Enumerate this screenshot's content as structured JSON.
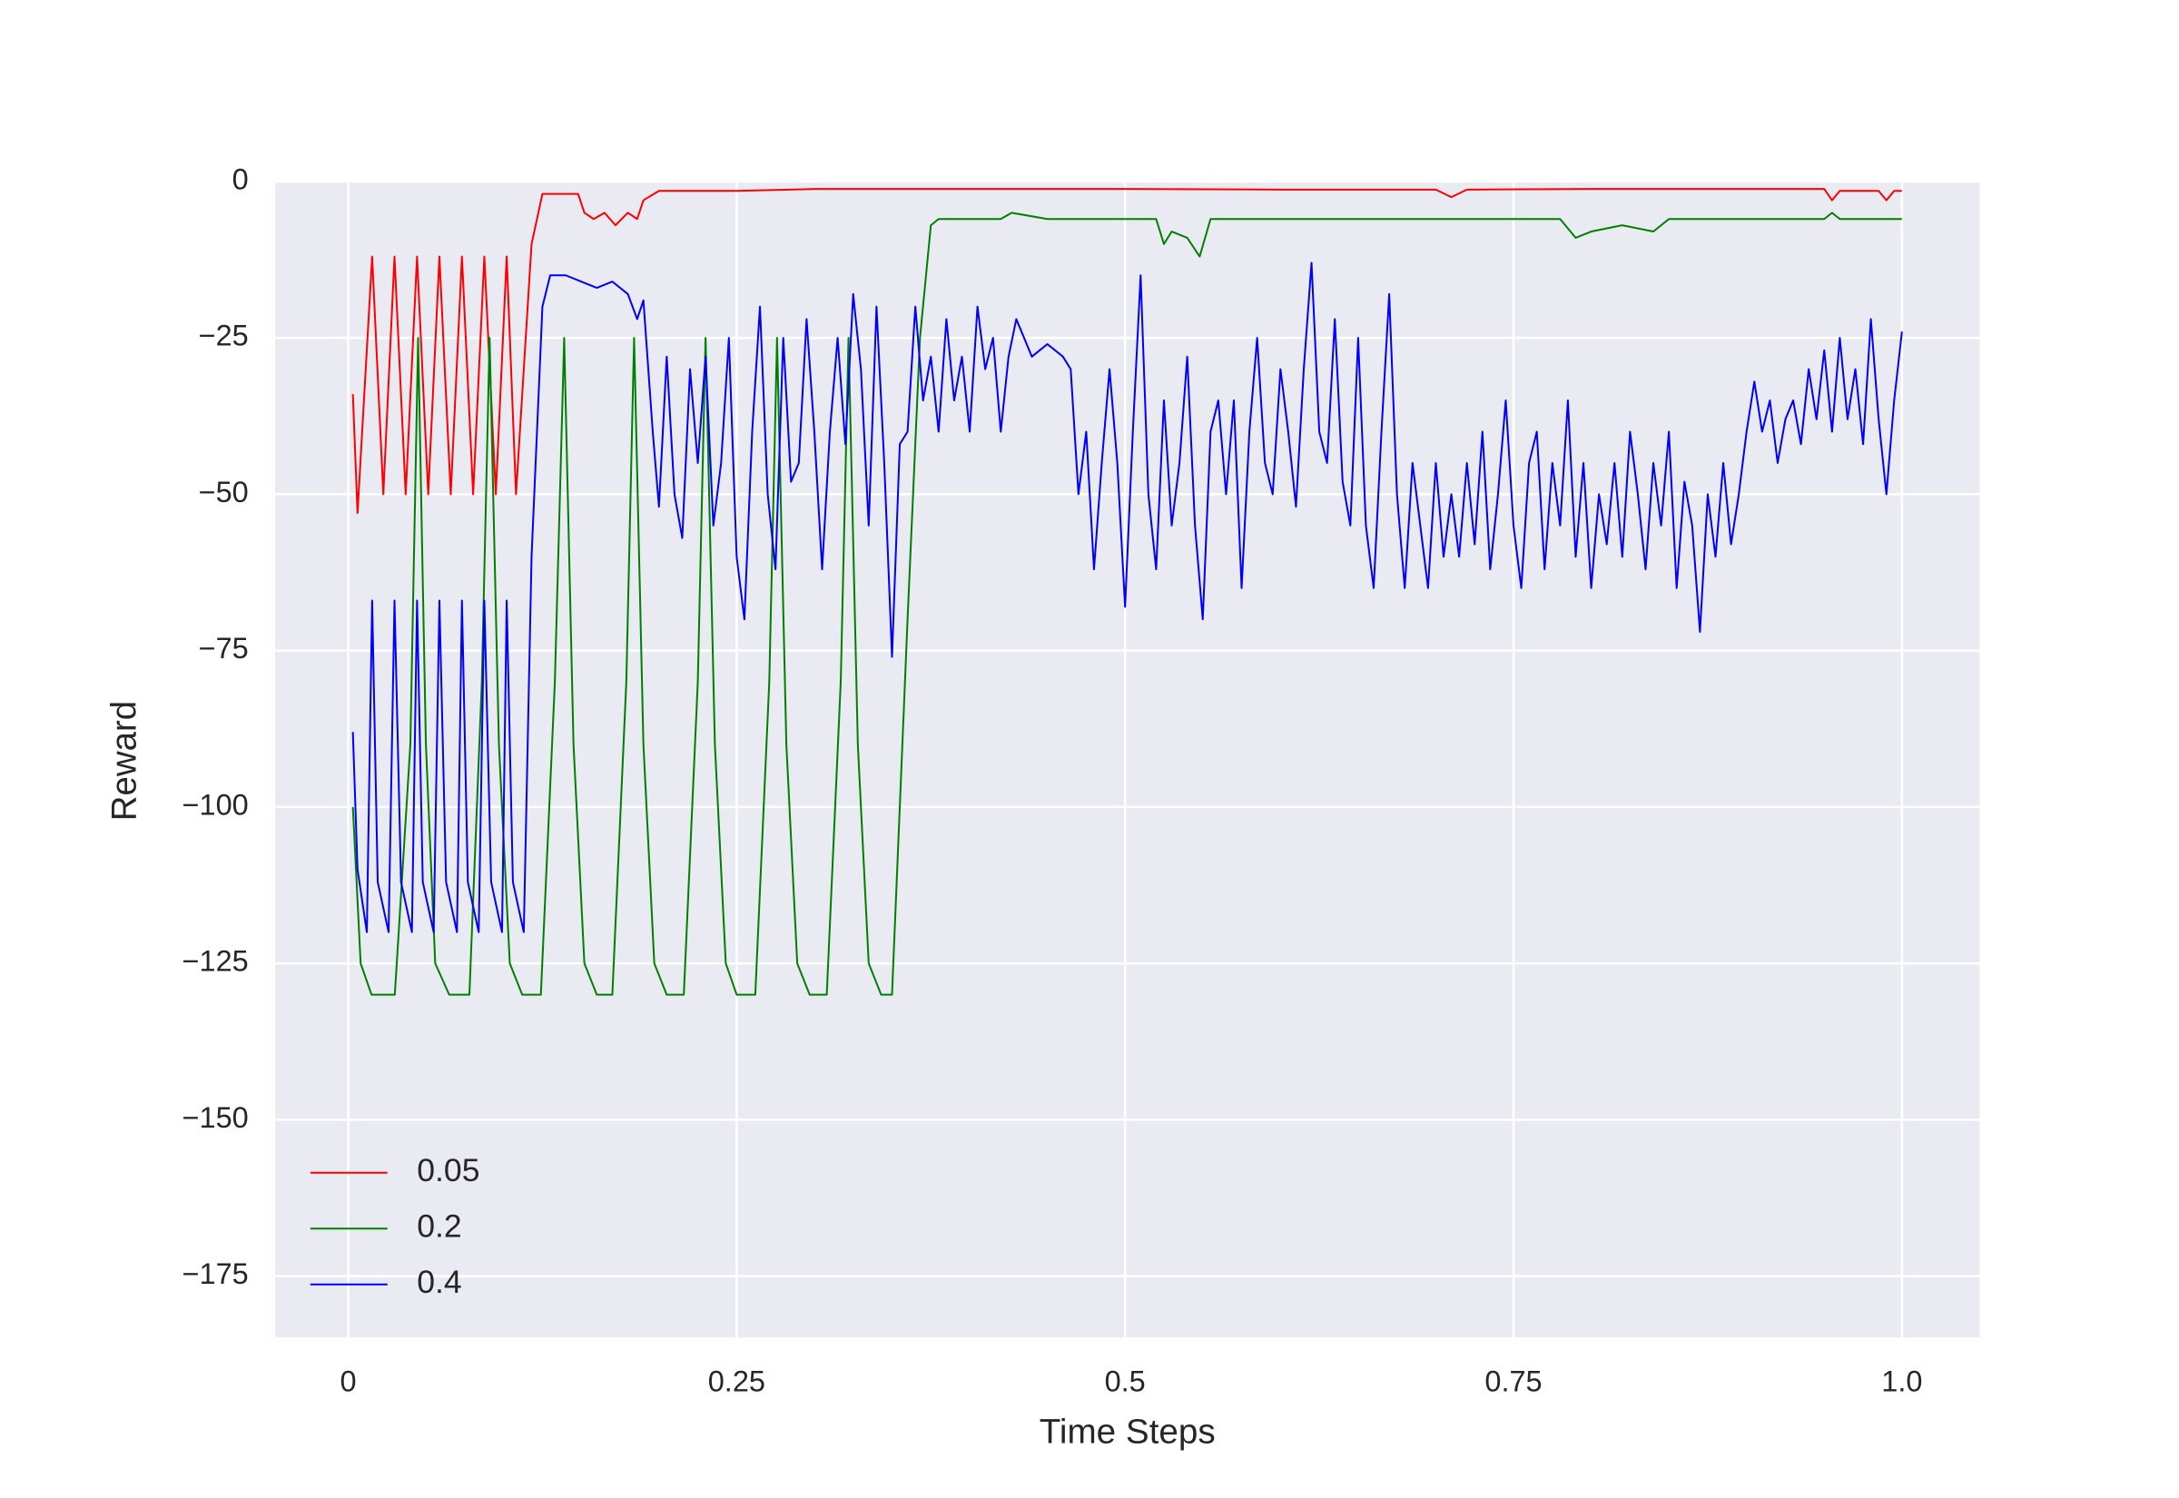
{
  "chart_data": {
    "type": "line",
    "x_label": "Time Steps",
    "y_label": "Reward",
    "xlim": [
      -0.047,
      1.05
    ],
    "ylim": [
      -184.8,
      0
    ],
    "xticks": [
      0,
      0.25,
      0.5,
      0.75,
      {
        "value": 1,
        "label": "1.0"
      }
    ],
    "yticks": [
      0,
      {
        "value": -25,
        "label": "−25"
      },
      {
        "value": -50,
        "label": "−50"
      },
      {
        "value": -75,
        "label": "−75"
      },
      {
        "value": -100,
        "label": "−100"
      },
      {
        "value": -125,
        "label": "−125"
      },
      {
        "value": -150,
        "label": "−150"
      },
      {
        "value": -175,
        "label": "−175"
      }
    ],
    "grid": true,
    "legend": "lower left",
    "series": [
      {
        "name": "0.05",
        "color": "#ff0000",
        "x": [
          0.003,
          0.006,
          0.0154,
          0.0226,
          0.0298,
          0.037,
          0.0443,
          0.0515,
          0.0587,
          0.066,
          0.0732,
          0.0804,
          0.0876,
          0.095,
          0.102,
          0.108,
          0.118,
          0.125,
          0.14,
          0.148,
          0.152,
          0.158,
          0.165,
          0.172,
          0.18,
          0.186,
          0.19,
          0.2,
          0.25,
          0.3,
          0.4,
          0.5,
          0.6,
          0.7,
          0.71,
          0.72,
          0.8,
          0.9,
          0.95,
          0.955,
          0.96,
          0.985,
          0.99,
          0.995,
          1.0
        ],
        "values": [
          -34,
          -53,
          -12,
          -50,
          -12,
          -50,
          -12,
          -50,
          -12,
          -50,
          -12,
          -50,
          -12,
          -50,
          -12,
          -50,
          -10,
          -2,
          -2,
          -2,
          -5,
          -6,
          -5,
          -7,
          -5,
          -6,
          -3,
          -1.5,
          -1.5,
          -1.2,
          -1.2,
          -1.2,
          -1.3,
          -1.3,
          -2.5,
          -1.3,
          -1.2,
          -1.2,
          -1.2,
          -3,
          -1.5,
          -1.5,
          -3,
          -1.5,
          -1.5
        ]
      },
      {
        "name": "0.2",
        "color": "#008000",
        "x": [
          0.003,
          0.008,
          0.015,
          0.03,
          0.04,
          0.045,
          0.05,
          0.056,
          0.065,
          0.078,
          0.086,
          0.091,
          0.097,
          0.104,
          0.112,
          0.124,
          0.133,
          0.139,
          0.145,
          0.152,
          0.16,
          0.17,
          0.179,
          0.184,
          0.19,
          0.197,
          0.205,
          0.216,
          0.225,
          0.23,
          0.236,
          0.243,
          0.25,
          0.262,
          0.271,
          0.276,
          0.282,
          0.289,
          0.297,
          0.308,
          0.317,
          0.322,
          0.328,
          0.335,
          0.343,
          0.35,
          0.36,
          0.368,
          0.375,
          0.38,
          0.42,
          0.427,
          0.45,
          0.5,
          0.52,
          0.525,
          0.53,
          0.54,
          0.548,
          0.555,
          0.6,
          0.7,
          0.78,
          0.79,
          0.8,
          0.82,
          0.84,
          0.85,
          0.9,
          0.95,
          0.955,
          0.96,
          1.0
        ],
        "values": [
          -100,
          -125,
          -130,
          -130,
          -90,
          -25,
          -90,
          -125,
          -130,
          -130,
          -80,
          -25,
          -90,
          -125,
          -130,
          -130,
          -80,
          -25,
          -90,
          -125,
          -130,
          -130,
          -80,
          -25,
          -90,
          -125,
          -130,
          -130,
          -80,
          -25,
          -90,
          -125,
          -130,
          -130,
          -80,
          -25,
          -90,
          -125,
          -130,
          -130,
          -80,
          -25,
          -90,
          -125,
          -130,
          -130,
          -70,
          -25,
          -7,
          -6,
          -6,
          -5,
          -6,
          -6,
          -6,
          -10,
          -8,
          -9,
          -12,
          -6,
          -6,
          -6,
          -6,
          -9,
          -8,
          -7,
          -8,
          -6,
          -6,
          -6,
          -5,
          -6,
          -6
        ]
      },
      {
        "name": "0.4",
        "color": "#0000ff",
        "x": [
          0.003,
          0.006,
          0.012,
          0.0154,
          0.019,
          0.026,
          0.0298,
          0.034,
          0.041,
          0.0443,
          0.048,
          0.055,
          0.0587,
          0.063,
          0.07,
          0.0732,
          0.077,
          0.084,
          0.0876,
          0.092,
          0.099,
          0.102,
          0.106,
          0.113,
          0.118,
          0.125,
          0.13,
          0.14,
          0.15,
          0.16,
          0.17,
          0.18,
          0.186,
          0.19,
          0.196,
          0.2,
          0.205,
          0.21,
          0.215,
          0.22,
          0.225,
          0.23,
          0.235,
          0.24,
          0.245,
          0.25,
          0.255,
          0.26,
          0.265,
          0.27,
          0.275,
          0.28,
          0.285,
          0.29,
          0.295,
          0.3,
          0.305,
          0.31,
          0.315,
          0.32,
          0.325,
          0.33,
          0.335,
          0.34,
          0.345,
          0.35,
          0.355,
          0.36,
          0.365,
          0.37,
          0.375,
          0.38,
          0.385,
          0.39,
          0.395,
          0.4,
          0.405,
          0.41,
          0.415,
          0.42,
          0.425,
          0.43,
          0.44,
          0.45,
          0.46,
          0.465,
          0.47,
          0.475,
          0.48,
          0.485,
          0.49,
          0.495,
          0.5,
          0.505,
          0.51,
          0.515,
          0.52,
          0.525,
          0.53,
          0.535,
          0.54,
          0.545,
          0.55,
          0.555,
          0.56,
          0.565,
          0.57,
          0.575,
          0.58,
          0.585,
          0.59,
          0.595,
          0.6,
          0.605,
          0.61,
          0.615,
          0.62,
          0.625,
          0.63,
          0.635,
          0.64,
          0.645,
          0.65,
          0.655,
          0.66,
          0.665,
          0.67,
          0.675,
          0.68,
          0.685,
          0.69,
          0.695,
          0.7,
          0.705,
          0.71,
          0.715,
          0.72,
          0.725,
          0.73,
          0.735,
          0.74,
          0.745,
          0.75,
          0.755,
          0.76,
          0.765,
          0.77,
          0.775,
          0.78,
          0.785,
          0.79,
          0.795,
          0.8,
          0.805,
          0.81,
          0.815,
          0.82,
          0.825,
          0.83,
          0.835,
          0.84,
          0.845,
          0.85,
          0.855,
          0.86,
          0.865,
          0.87,
          0.875,
          0.88,
          0.885,
          0.89,
          0.895,
          0.9,
          0.905,
          0.91,
          0.915,
          0.92,
          0.925,
          0.93,
          0.935,
          0.94,
          0.945,
          0.95,
          0.955,
          0.96,
          0.965,
          0.97,
          0.975,
          0.98,
          0.985,
          0.99,
          0.995,
          1.0
        ],
        "values": [
          -88,
          -110,
          -120,
          -67,
          -112,
          -120,
          -67,
          -112,
          -120,
          -67,
          -112,
          -120,
          -67,
          -112,
          -120,
          -67,
          -112,
          -120,
          -67,
          -112,
          -120,
          -67,
          -112,
          -120,
          -60,
          -20,
          -15,
          -15,
          -16,
          -17,
          -16,
          -18,
          -22,
          -19,
          -40,
          -52,
          -28,
          -50,
          -57,
          -30,
          -45,
          -28,
          -55,
          -45,
          -25,
          -60,
          -70,
          -40,
          -20,
          -50,
          -62,
          -25,
          -48,
          -45,
          -22,
          -40,
          -62,
          -40,
          -25,
          -42,
          -18,
          -30,
          -55,
          -20,
          -45,
          -76,
          -42,
          -40,
          -20,
          -35,
          -28,
          -40,
          -22,
          -35,
          -28,
          -40,
          -20,
          -30,
          -25,
          -40,
          -28,
          -22,
          -28,
          -26,
          -28,
          -30,
          -50,
          -40,
          -62,
          -45,
          -30,
          -45,
          -68,
          -40,
          -15,
          -50,
          -62,
          -35,
          -55,
          -45,
          -28,
          -55,
          -70,
          -40,
          -35,
          -50,
          -35,
          -65,
          -40,
          -25,
          -45,
          -50,
          -30,
          -40,
          -52,
          -30,
          -13,
          -40,
          -45,
          -22,
          -48,
          -55,
          -25,
          -55,
          -65,
          -40,
          -18,
          -50,
          -65,
          -45,
          -55,
          -65,
          -45,
          -60,
          -50,
          -60,
          -45,
          -58,
          -40,
          -62,
          -50,
          -35,
          -55,
          -65,
          -45,
          -40,
          -62,
          -45,
          -55,
          -35,
          -60,
          -45,
          -65,
          -50,
          -58,
          -45,
          -60,
          -40,
          -50,
          -62,
          -45,
          -55,
          -40,
          -65,
          -48,
          -55,
          -72,
          -50,
          -60,
          -45,
          -58,
          -50,
          -40,
          -32,
          -40,
          -35,
          -45,
          -38,
          -35,
          -42,
          -30,
          -38,
          -27,
          -40,
          -25,
          -38,
          -30,
          -42,
          -22,
          -38,
          -50,
          -35,
          -24
        ]
      }
    ]
  }
}
